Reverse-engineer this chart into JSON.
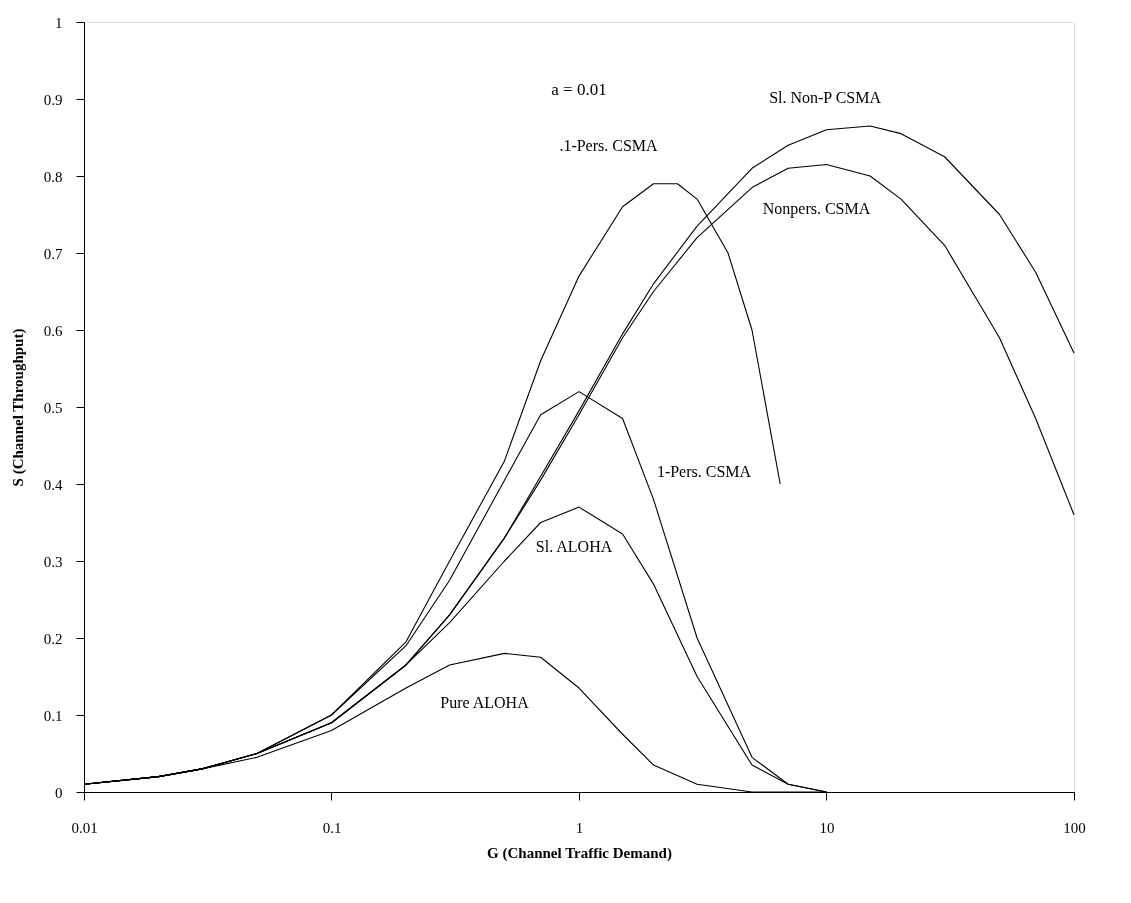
{
  "chart_data": {
    "type": "line",
    "xlabel": "G (Channel Traffic Demand)",
    "ylabel": "S (Channel Throughput)",
    "log": "x",
    "grid": false,
    "legend": false,
    "marker": "none",
    "line_style": "solid",
    "xlim": [
      0.01,
      100
    ],
    "xticks": [
      0.01,
      0.1,
      1,
      10,
      100
    ],
    "ylim": [
      0,
      1
    ],
    "yticks": [
      0,
      0.1,
      0.2,
      0.3,
      0.4,
      0.5,
      0.6,
      0.7,
      0.8,
      0.9,
      1
    ],
    "annotations": [
      "a = 0.01"
    ],
    "series": [
      {
        "name": "Pure ALOHA",
        "color": "#000000",
        "x": [
          0.01,
          0.02,
          0.03,
          0.05,
          0.1,
          0.2,
          0.3,
          0.5,
          0.7,
          1,
          1.5,
          2,
          3,
          5,
          10
        ],
        "values": [
          0.01,
          0.02,
          0.03,
          0.045,
          0.08,
          0.135,
          0.165,
          0.18,
          0.175,
          0.135,
          0.075,
          0.035,
          0.01,
          0,
          0
        ]
      },
      {
        "name": "Sl. ALOHA",
        "color": "#000000",
        "x": [
          0.01,
          0.02,
          0.03,
          0.05,
          0.1,
          0.2,
          0.3,
          0.5,
          0.7,
          1,
          1.5,
          2,
          3,
          5,
          7,
          10
        ],
        "values": [
          0.01,
          0.02,
          0.03,
          0.05,
          0.09,
          0.165,
          0.22,
          0.3,
          0.35,
          0.37,
          0.335,
          0.27,
          0.15,
          0.035,
          0.01,
          0
        ]
      },
      {
        "name": "1-Pers. CSMA",
        "color": "#000000",
        "x": [
          0.01,
          0.02,
          0.03,
          0.05,
          0.1,
          0.2,
          0.3,
          0.5,
          0.7,
          1,
          1.5,
          2,
          3,
          5,
          7,
          10
        ],
        "values": [
          0.01,
          0.02,
          0.03,
          0.05,
          0.1,
          0.19,
          0.275,
          0.405,
          0.49,
          0.52,
          0.485,
          0.38,
          0.2,
          0.045,
          0.01,
          0
        ]
      },
      {
        "name": ".1-Pers. CSMA",
        "color": "#000000",
        "x": [
          0.01,
          0.02,
          0.03,
          0.05,
          0.1,
          0.2,
          0.3,
          0.5,
          0.7,
          1,
          1.5,
          2,
          2.5,
          3,
          4,
          5,
          6.5
        ],
        "values": [
          0.01,
          0.02,
          0.03,
          0.05,
          0.1,
          0.195,
          0.3,
          0.43,
          0.56,
          0.67,
          0.76,
          0.79,
          0.79,
          0.77,
          0.7,
          0.6,
          0.4
        ]
      },
      {
        "name": "Nonpers. CSMA",
        "color": "#000000",
        "x": [
          0.01,
          0.02,
          0.03,
          0.05,
          0.1,
          0.2,
          0.3,
          0.5,
          0.7,
          1,
          1.5,
          2,
          3,
          5,
          7,
          10,
          15,
          20,
          30,
          50,
          70,
          100
        ],
        "values": [
          0.01,
          0.02,
          0.03,
          0.05,
          0.09,
          0.165,
          0.23,
          0.33,
          0.405,
          0.49,
          0.59,
          0.65,
          0.72,
          0.785,
          0.81,
          0.815,
          0.8,
          0.77,
          0.71,
          0.59,
          0.485,
          0.36
        ]
      },
      {
        "name": "Sl. Non-P CSMA",
        "color": "#000000",
        "x": [
          0.01,
          0.02,
          0.03,
          0.05,
          0.1,
          0.2,
          0.3,
          0.5,
          0.7,
          1,
          1.5,
          2,
          3,
          5,
          7,
          10,
          15,
          20,
          30,
          50,
          70,
          100
        ],
        "values": [
          0.01,
          0.02,
          0.03,
          0.05,
          0.09,
          0.165,
          0.23,
          0.33,
          0.41,
          0.495,
          0.595,
          0.66,
          0.735,
          0.81,
          0.84,
          0.86,
          0.865,
          0.855,
          0.825,
          0.75,
          0.675,
          0.57
        ]
      }
    ]
  }
}
